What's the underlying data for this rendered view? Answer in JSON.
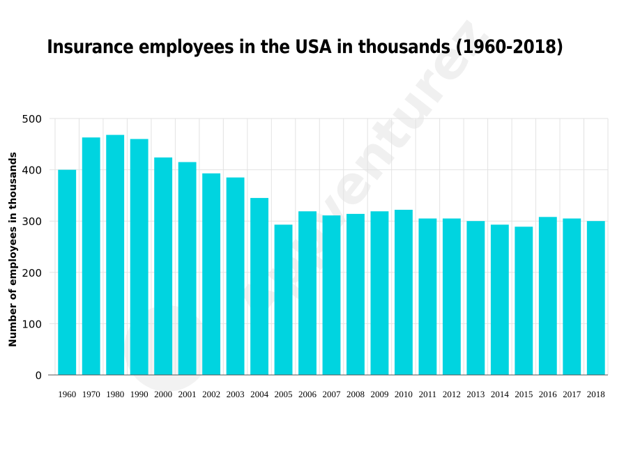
{
  "watermark": "Appventurez",
  "colors": {
    "bar": "#00D4E0",
    "grid": "#E2E2E2",
    "axis": "#555555"
  },
  "chart_data": {
    "type": "bar",
    "title": "Insurance employees in the USA in thousands (1960-2018)",
    "xlabel": "",
    "ylabel": "Number of employees in thousands",
    "categories": [
      "1960",
      "1970",
      "1980",
      "1990",
      "2000",
      "2001",
      "2002",
      "2003",
      "2004",
      "2005",
      "2006",
      "2007",
      "2008",
      "2009",
      "2010",
      "2011",
      "2012",
      "2013",
      "2014",
      "2015",
      "2016",
      "2017",
      "2018"
    ],
    "values": [
      400,
      463,
      468,
      460,
      424,
      415,
      393,
      385,
      345,
      293,
      319,
      311,
      314,
      319,
      322,
      305,
      305,
      300,
      293,
      289,
      308,
      305,
      300
    ],
    "ylim": [
      0,
      500
    ],
    "yticks": [
      0,
      100,
      200,
      300,
      400,
      500
    ],
    "grid": true,
    "legend": "none"
  }
}
